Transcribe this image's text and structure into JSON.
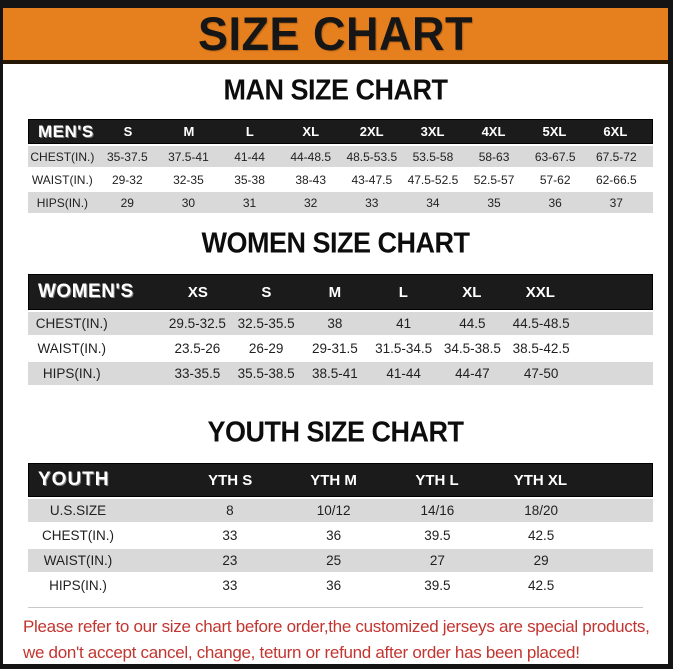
{
  "banner": {
    "title": "SIZE CHART"
  },
  "sections": [
    {
      "title": "MAN SIZE CHART",
      "header": {
        "label": "MEN'S",
        "columns": [
          "S",
          "M",
          "L",
          "XL",
          "2XL",
          "3XL",
          "4XL",
          "5XL",
          "6XL"
        ]
      },
      "rows": [
        {
          "label": "CHEST(IN.)",
          "values": [
            "35-37.5",
            "37.5-41",
            "41-44",
            "44-48.5",
            "48.5-53.5",
            "53.5-58",
            "58-63",
            "63-67.5",
            "67.5-72"
          ]
        },
        {
          "label": "WAIST(IN.)",
          "values": [
            "29-32",
            "32-35",
            "35-38",
            "38-43",
            "43-47.5",
            "47.5-52.5",
            "52.5-57",
            "57-62",
            "62-66.5"
          ]
        },
        {
          "label": "HIPS(IN.)",
          "values": [
            "29",
            "30",
            "31",
            "32",
            "33",
            "34",
            "35",
            "36",
            "37"
          ]
        }
      ]
    },
    {
      "title": "WOMEN SIZE CHART",
      "header": {
        "label": "WOMEN'S",
        "columns": [
          "XS",
          "S",
          "M",
          "L",
          "XL",
          "XXL"
        ]
      },
      "rows": [
        {
          "label": "CHEST(IN.)",
          "values": [
            "29.5-32.5",
            "32.5-35.5",
            "38",
            "41",
            "44.5",
            "44.5-48.5"
          ]
        },
        {
          "label": "WAIST(IN.)",
          "values": [
            "23.5-26",
            "26-29",
            "29-31.5",
            "31.5-34.5",
            "34.5-38.5",
            "38.5-42.5"
          ]
        },
        {
          "label": "HIPS(IN.)",
          "values": [
            "33-35.5",
            "35.5-38.5",
            "38.5-41",
            "41-44",
            "44-47",
            "47-50"
          ]
        }
      ]
    },
    {
      "title": "YOUTH SIZE CHART",
      "header": {
        "label": "YOUTH",
        "columns": [
          "YTH S",
          "YTH M",
          "YTH L",
          "YTH XL"
        ]
      },
      "rows": [
        {
          "label": "U.S.SIZE",
          "values": [
            "8",
            "10/12",
            "14/16",
            "18/20"
          ]
        },
        {
          "label": "CHEST(IN.)",
          "values": [
            "33",
            "36",
            "39.5",
            "42.5"
          ]
        },
        {
          "label": "WAIST(IN.)",
          "values": [
            "23",
            "25",
            "27",
            "29"
          ]
        },
        {
          "label": "HIPS(IN.)",
          "values": [
            "33",
            "36",
            "39.5",
            "42.5"
          ]
        }
      ]
    }
  ],
  "footer": {
    "line1": "Please refer to our size chart before order,the customized jerseys are special products,",
    "line2": "we don't accept cancel, change, teturn or refund after order has been placed!"
  },
  "colors": {
    "banner_bg": "#E6801E",
    "table_header_bg": "#1b1b1b",
    "row_alt_bg": "#d9d9d9",
    "footer_text": "#C23530",
    "frame": "#141414"
  }
}
